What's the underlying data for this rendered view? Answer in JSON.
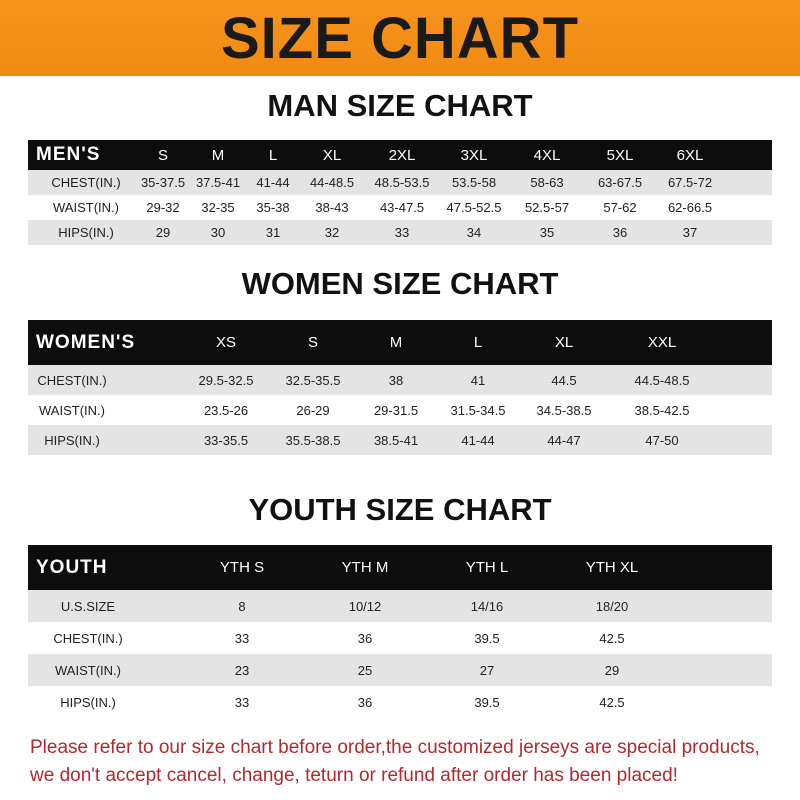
{
  "banner": {
    "title": "SIZE CHART",
    "color": "#f7941d"
  },
  "men": {
    "title": "MAN SIZE CHART",
    "header": [
      "MEN'S",
      "S",
      "M",
      "L",
      "XL",
      "2XL",
      "3XL",
      "4XL",
      "5XL",
      "6XL"
    ],
    "rows": [
      [
        "CHEST(IN.)",
        "35-37.5",
        "37.5-41",
        "41-44",
        "44-48.5",
        "48.5-53.5",
        "53.5-58",
        "58-63",
        "63-67.5",
        "67.5-72"
      ],
      [
        "WAIST(IN.)",
        "29-32",
        "32-35",
        "35-38",
        "38-43",
        "43-47.5",
        "47.5-52.5",
        "52.5-57",
        "57-62",
        "62-66.5"
      ],
      [
        "HIPS(IN.)",
        "29",
        "30",
        "31",
        "32",
        "33",
        "34",
        "35",
        "36",
        "37"
      ]
    ]
  },
  "women": {
    "title": "WOMEN SIZE CHART",
    "header": [
      "WOMEN'S",
      "XS",
      "S",
      "M",
      "L",
      "XL",
      "XXL"
    ],
    "rows": [
      [
        "CHEST(IN.)",
        "29.5-32.5",
        "32.5-35.5",
        "38",
        "41",
        "44.5",
        "44.5-48.5"
      ],
      [
        "WAIST(IN.)",
        "23.5-26",
        "26-29",
        "29-31.5",
        "31.5-34.5",
        "34.5-38.5",
        "38.5-42.5"
      ],
      [
        "HIPS(IN.)",
        "33-35.5",
        "35.5-38.5",
        "38.5-41",
        "41-44",
        "44-47",
        "47-50"
      ]
    ]
  },
  "youth": {
    "title": "YOUTH SIZE CHART",
    "header": [
      "YOUTH",
      "YTH S",
      "YTH M",
      "YTH L",
      "YTH XL"
    ],
    "rows": [
      [
        "U.S.SIZE",
        "8",
        "10/12",
        "14/16",
        "18/20"
      ],
      [
        "CHEST(IN.)",
        "33",
        "36",
        "39.5",
        "42.5"
      ],
      [
        "WAIST(IN.)",
        "23",
        "25",
        "27",
        "29"
      ],
      [
        "HIPS(IN.)",
        "33",
        "36",
        "39.5",
        "42.5"
      ]
    ]
  },
  "footer": {
    "line1": "Please refer to our size chart before order,the customized jerseys are special products,",
    "line2": "we don't accept cancel, change, teturn or refund after order has been placed!",
    "color": "#b3282d"
  }
}
